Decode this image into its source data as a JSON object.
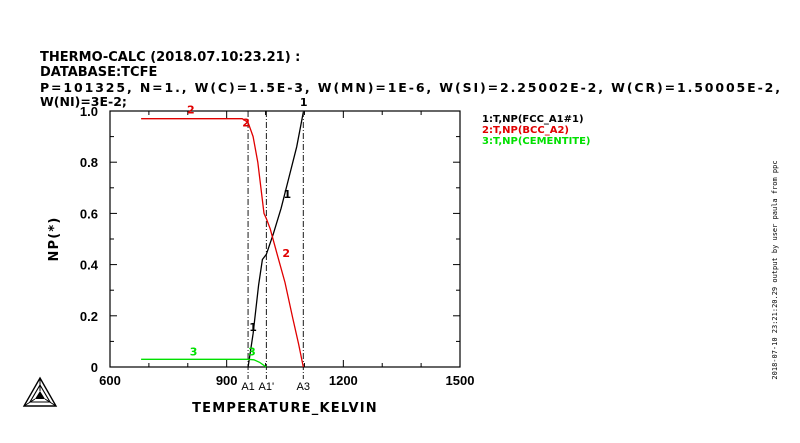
{
  "header": {
    "line1": "THERMO-CALC (2018.07.10:23.21) :",
    "line2": "DATABASE:TCFE",
    "line3": " P=101325, N=1., W(C)=1.5E-3, W(MN)=1E-6, W(SI)=2.25002E-2, W(CR)=1.50005E-2,",
    "line4": " W(NI)=3E-2;"
  },
  "side_text": "2018-07-10 23:21:20.29 output by user paula from ppc",
  "colors": {
    "fcc": "#000000",
    "bcc": "#e00000",
    "cementite": "#00e000",
    "axis": "#000000",
    "annotation_line": "#000000"
  },
  "icons": {
    "logo": "thermo-calc-triangle-icon"
  },
  "chart_data": {
    "type": "line",
    "title": "",
    "xlabel": "TEMPERATURE_KELVIN",
    "ylabel": "NP(*)",
    "xlim": [
      600,
      1500
    ],
    "ylim": [
      0,
      1.0
    ],
    "xticks": [
      600,
      900,
      1200,
      1500
    ],
    "xtick_labels": [
      "600",
      "900",
      "1200",
      "1500"
    ],
    "yticks": [
      0,
      0.2,
      0.4,
      0.6,
      0.8,
      1.0
    ],
    "ytick_labels": [
      "0",
      "0.2",
      "0.4",
      "0.6",
      "0.8",
      "1.0"
    ],
    "grid": false,
    "legend_placement": "right",
    "series": [
      {
        "name": "1:T,NP(FCC_A1#1)",
        "label": "1",
        "color": "#000000",
        "x": [
          955,
          968,
          982,
          992,
          1002,
          1020,
          1040,
          1060,
          1080,
          1097
        ],
        "y": [
          0.0,
          0.13,
          0.32,
          0.42,
          0.44,
          0.52,
          0.62,
          0.74,
          0.86,
          0.995
        ],
        "curve_labels": [
          {
            "x": 968,
            "y": 0.14
          },
          {
            "x": 1056,
            "y": 0.66
          },
          {
            "x": 1098,
            "y": 1.02
          }
        ]
      },
      {
        "name": "2:T,NP(BCC_A2)",
        "label": "2",
        "color": "#e00000",
        "x": [
          680,
          940,
          955,
          968,
          980,
          988,
          996,
          1002,
          1012,
          1030,
          1050,
          1070,
          1085,
          1097
        ],
        "y": [
          0.97,
          0.97,
          0.955,
          0.9,
          0.8,
          0.7,
          0.6,
          0.58,
          0.54,
          0.44,
          0.33,
          0.19,
          0.09,
          0.0
        ],
        "curve_labels": [
          {
            "x": 808,
            "y": 0.99
          },
          {
            "x": 950,
            "y": 0.94
          },
          {
            "x": 1053,
            "y": 0.43
          }
        ]
      },
      {
        "name": "3:T,NP(CEMENTITE)",
        "label": "3",
        "color": "#00e000",
        "x": [
          680,
          955,
          970,
          985,
          995,
          1002
        ],
        "y": [
          0.03,
          0.03,
          0.028,
          0.018,
          0.007,
          0.0
        ],
        "curve_labels": [
          {
            "x": 815,
            "y": 0.045
          },
          {
            "x": 965,
            "y": 0.045
          }
        ]
      }
    ],
    "annotations": [
      {
        "label": "A1",
        "x": 955
      },
      {
        "label": "A1'",
        "x": 1002
      },
      {
        "label": "A3",
        "x": 1097
      }
    ]
  }
}
